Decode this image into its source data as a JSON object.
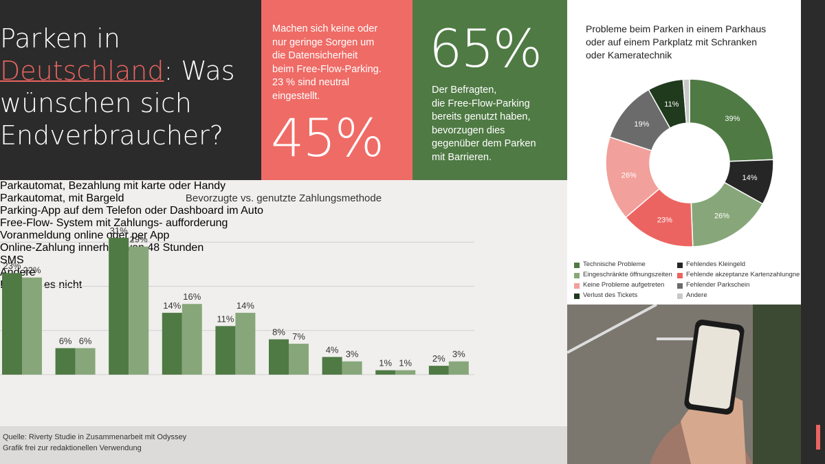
{
  "header": {
    "title": [
      "Parken in",
      "Deutschland",
      ": Was",
      "wünschen sich",
      "Endverbraucher?"
    ]
  },
  "stat_boxes": [
    {
      "text": [
        "Machen sich keine oder",
        "nur geringe Sorgen um",
        "die Datensicherheit",
        "beim Free-Flow-Parking.",
        "23 % sind neutral",
        "eingestellt."
      ],
      "figure": "45%"
    },
    {
      "figure": "65%",
      "text": [
        "Der Befragten,",
        "die Free-Flow-Parking",
        "bereits genutzt haben,",
        "bevorzugen dies",
        "gegenüber dem Parken",
        "mit Barrieren."
      ]
    }
  ],
  "chart_data": [
    {
      "type": "bar",
      "title": "Bevorzugte vs. genutzte Zahlungsmethode",
      "categories": [
        "Parkautomat,\nBezahlung\nmit karte oder\nHandy",
        "Parkautomat,\nmit Bargeld",
        "Parking-App\nauf dem Telefon\noder Dashboard\nim Auto",
        "Free-Flow-\nSystem mit\nZahlungs-\naufforderung",
        "Voranmeldung\nonline oder\nper App",
        "Online-Zahlung\ninnerhalb von\n48 Stunden",
        "SMS",
        "Andere",
        "Ich weiß es nicht"
      ],
      "series": [
        {
          "color": "#4f7a44",
          "values": [
            23,
            6,
            31,
            14,
            11,
            8,
            4,
            1,
            2
          ],
          "value_labels": [
            "23%",
            "6%",
            "31%",
            "14%",
            "11%",
            "8%",
            "4%",
            "1%",
            "2%"
          ]
        },
        {
          "color": "#87a77a",
          "values": [
            22,
            6,
            29,
            16,
            14,
            7,
            3,
            1,
            3
          ],
          "value_labels": [
            "22%",
            "6%",
            "29%",
            "16%",
            "14%",
            "7%",
            "3%",
            "1%",
            "3%"
          ]
        }
      ],
      "ylim": [
        0,
        33
      ],
      "yticks": [
        0,
        10,
        20,
        30
      ],
      "grid": true
    },
    {
      "type": "donut",
      "title": [
        "Probleme beim Parken in einem Parkhaus",
        "oder auf einem Parkplatz mit Schranken",
        "oder Kameratechnik"
      ],
      "categories": [
        "Technische Probleme",
        "Fehlendes Kleingeld",
        "Eingeschränkte öffnungszeiten",
        "Fehlende akzeptanze Kartenzahlungne",
        "Keine Probleme aufgetreten",
        "Fehlender Parkschein",
        "Verlust des Tickets",
        "Andere"
      ],
      "values": [
        39,
        14,
        26,
        23,
        26,
        19,
        11,
        2
      ],
      "value_labels": [
        "39%",
        "14%",
        "26%",
        "23%",
        "26%",
        "19%",
        "11%",
        null
      ],
      "colors": [
        "#4f7a44",
        "#262626",
        "#87a77a",
        "#ec6461",
        "#f2a09b",
        "#6b6b6b",
        "#1f3a1c",
        "#c8c8c8"
      ]
    }
  ],
  "source": [
    "Quelle: Riverty Studie in Zusammenarbeit mit Odyssey",
    "Grafik frei zur redaktionellen Verwendung"
  ]
}
